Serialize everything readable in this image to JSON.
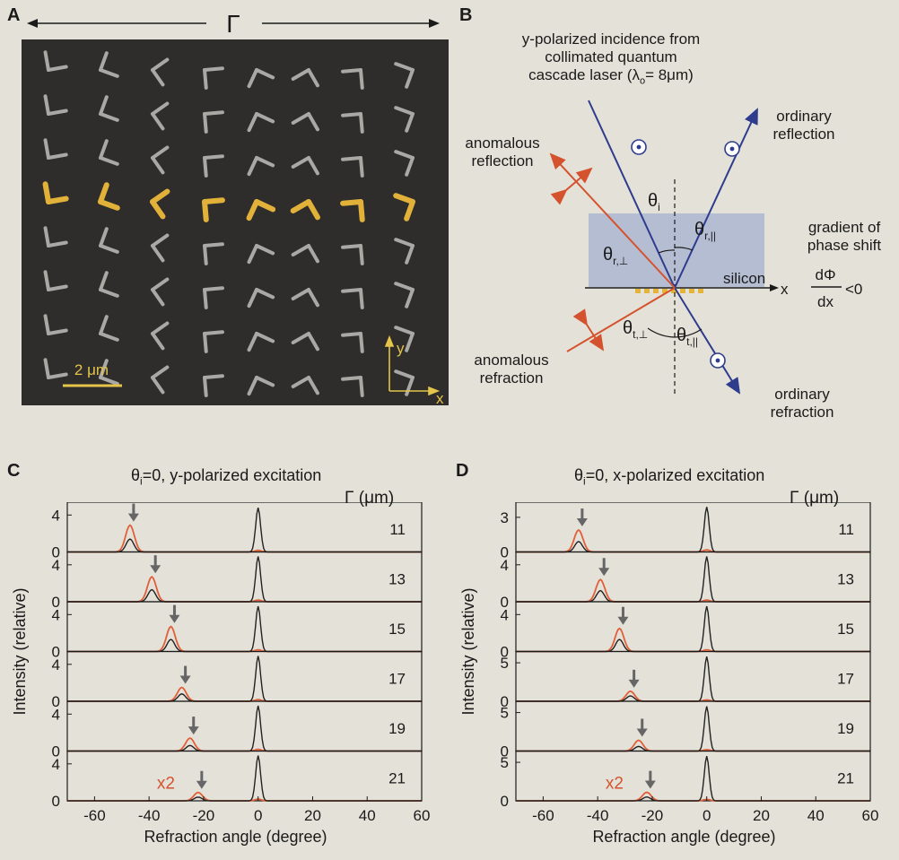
{
  "panels": {
    "a": {
      "letter": "A",
      "period_symbol": "Γ",
      "scale_bar": "2 μm",
      "axis_y": "y",
      "axis_x": "x"
    },
    "b": {
      "letter": "B",
      "incidence_lines": [
        "y-polarized incidence from",
        "collimated quantum",
        "cascade laser (λ",
        "o",
        "= 8μm)"
      ],
      "ordinary_reflection": [
        "ordinary",
        "reflection"
      ],
      "anomalous_reflection": [
        "anomalous",
        "reflection"
      ],
      "anomalous_refraction": [
        "anomalous",
        "refraction"
      ],
      "ordinary_refraction": [
        "ordinary",
        "refraction"
      ],
      "gradient_lines": [
        "gradient of",
        "phase shift"
      ],
      "frac_num": "dΦ",
      "frac_den": "dx",
      "frac_rel": "<0",
      "silicon": "silicon",
      "x_axis": "x",
      "theta": "θ",
      "sub_i": "i",
      "sub_r_par": "r,||",
      "sub_r_perp": "r,⊥",
      "sub_t_perp": "t,⊥",
      "sub_t_par": "t,||"
    },
    "c": {
      "letter": "C",
      "title_theta": "θ",
      "title_sub": "i",
      "title_rest": "=0, y-polarized excitation",
      "gamma_header": "Γ (μm)",
      "ylabel": "Intensity (relative)",
      "xlabel": "Refraction angle (degree)",
      "x2": "x2",
      "xticks": [
        "-60",
        "-40",
        "-20",
        "0",
        "20",
        "40",
        "60"
      ]
    },
    "d": {
      "letter": "D",
      "title_theta": "θ",
      "title_sub": "i",
      "title_rest": "=0, x-polarized excitation",
      "gamma_header": "Γ (μm)",
      "ylabel": "Intensity (relative)",
      "xlabel": "Refraction angle (degree)",
      "x2": "x2",
      "xticks": [
        "-60",
        "-40",
        "-20",
        "0",
        "20",
        "40",
        "60"
      ]
    }
  },
  "chart_data": [
    {
      "type": "line",
      "panel": "C",
      "title": "θi=0, y-polarized excitation",
      "xlabel": "Refraction angle (degree)",
      "ylabel": "Intensity (relative)",
      "xlim": [
        -70,
        60
      ],
      "colors": {
        "measured": "#e0603a",
        "simulated": "#222222",
        "arrow": "#666666"
      },
      "rows": [
        {
          "gamma": "11",
          "ymax": 5,
          "yticks": [
            "4",
            "0"
          ],
          "ytick_values": [
            4,
            0
          ],
          "peak_x": -47,
          "peak_red": 2.9,
          "peak_black": 1.4,
          "main_peak": 4.8
        },
        {
          "gamma": "13",
          "ymax": 5,
          "yticks": [
            "4",
            "0"
          ],
          "ytick_values": [
            4,
            0
          ],
          "peak_x": -39,
          "peak_red": 2.7,
          "peak_black": 1.3,
          "main_peak": 4.9
        },
        {
          "gamma": "15",
          "ymax": 5,
          "yticks": [
            "4",
            "0"
          ],
          "ytick_values": [
            4,
            0
          ],
          "peak_x": -32,
          "peak_red": 2.7,
          "peak_black": 1.3,
          "main_peak": 4.9
        },
        {
          "gamma": "17",
          "ymax": 5,
          "yticks": [
            "4",
            "0"
          ],
          "ytick_values": [
            4,
            0
          ],
          "peak_x": -28,
          "peak_red": 1.5,
          "peak_black": 0.8,
          "main_peak": 4.9
        },
        {
          "gamma": "19",
          "ymax": 5,
          "yticks": [
            "4",
            "0"
          ],
          "ytick_values": [
            4,
            0
          ],
          "peak_x": -25,
          "peak_red": 1.4,
          "peak_black": 0.6,
          "main_peak": 4.9
        },
        {
          "gamma": "21",
          "ymax": 5,
          "yticks": [
            "4",
            "0"
          ],
          "ytick_values": [
            4,
            0
          ],
          "peak_x": -22,
          "peak_red": 0.9,
          "peak_black": 0.4,
          "main_peak": 4.9
        }
      ],
      "x2_row": "21"
    },
    {
      "type": "line",
      "panel": "D",
      "title": "θi=0, x-polarized excitation",
      "xlabel": "Refraction angle (degree)",
      "ylabel": "Intensity (relative)",
      "xlim": [
        -70,
        60
      ],
      "colors": {
        "measured": "#e0603a",
        "simulated": "#222222",
        "arrow": "#666666"
      },
      "rows": [
        {
          "gamma": "11",
          "ymax": 4,
          "yticks": [
            "3",
            "0"
          ],
          "ytick_values": [
            3,
            0
          ],
          "peak_x": -47,
          "peak_red": 1.9,
          "peak_black": 0.9,
          "main_peak": 3.9
        },
        {
          "gamma": "13",
          "ymax": 5,
          "yticks": [
            "4",
            "0"
          ],
          "ytick_values": [
            4,
            0
          ],
          "peak_x": -39,
          "peak_red": 2.4,
          "peak_black": 1.2,
          "main_peak": 4.9
        },
        {
          "gamma": "15",
          "ymax": 5,
          "yticks": [
            "4",
            "0"
          ],
          "ytick_values": [
            4,
            0
          ],
          "peak_x": -32,
          "peak_red": 2.5,
          "peak_black": 1.3,
          "main_peak": 4.9
        },
        {
          "gamma": "17",
          "ymax": 6,
          "yticks": [
            "5",
            "0"
          ],
          "ytick_values": [
            5,
            0
          ],
          "peak_x": -28,
          "peak_red": 1.3,
          "peak_black": 0.7,
          "main_peak": 5.8
        },
        {
          "gamma": "19",
          "ymax": 6,
          "yticks": [
            "5",
            "0"
          ],
          "ytick_values": [
            5,
            0
          ],
          "peak_x": -25,
          "peak_red": 1.4,
          "peak_black": 0.6,
          "main_peak": 5.8
        },
        {
          "gamma": "21",
          "ymax": 6,
          "yticks": [
            "5",
            "0"
          ],
          "ytick_values": [
            5,
            0
          ],
          "peak_x": -22,
          "peak_red": 1.1,
          "peak_black": 0.5,
          "main_peak": 5.8
        }
      ],
      "x2_row": "21"
    }
  ]
}
